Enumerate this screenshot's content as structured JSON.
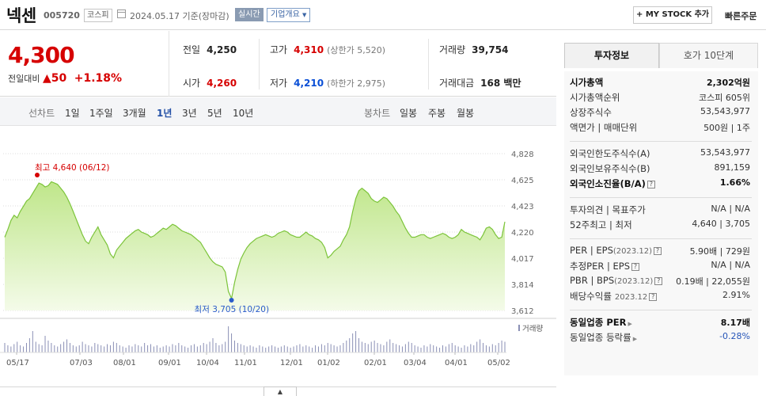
{
  "header": {
    "name": "넥센",
    "code": "005720",
    "market": "코스피",
    "date_text": "2024.05.17 기준(장마감)",
    "realtime": "실시간",
    "company_info": "기업개요",
    "my_stock": "+ MY STOCK 추가",
    "quick_order": "빠른주문"
  },
  "price": {
    "current": "4,300",
    "change_label": "전일대비",
    "change_amount": "▲50",
    "change_rate": "+1.18%"
  },
  "stats": {
    "prev_label": "전일",
    "prev": "4,250",
    "high_label": "고가",
    "high": "4,310",
    "upper_limit": "(상한가 5,520)",
    "volume_label": "거래량",
    "volume": "39,754",
    "open_label": "시가",
    "open": "4,260",
    "low_label": "저가",
    "low": "4,210",
    "lower_limit": "(하한가 2,975)",
    "amount_label": "거래대금",
    "amount": "168 백만"
  },
  "chart_tabs": {
    "line_label": "선차트",
    "line_periods": [
      "1일",
      "1주일",
      "3개월",
      "1년",
      "3년",
      "5년",
      "10년"
    ],
    "active": "1년",
    "candle_label": "봉차트",
    "candle_periods": [
      "일봉",
      "주봉",
      "월봉"
    ]
  },
  "chart_data": {
    "type": "area",
    "title": "",
    "x_tick_labels": [
      "05/17",
      "07/03",
      "08/01",
      "09/01",
      "10/04",
      "11/01",
      "12/01",
      "01/02",
      "02/01",
      "03/04",
      "04/01",
      "05/02"
    ],
    "y_ticks": [
      4828,
      4625,
      4423,
      4220,
      4017,
      3814,
      3612
    ],
    "ylim": [
      3612,
      4828
    ],
    "high_label": "최고 4,640 (06/12)",
    "low_label": "최저 3,705 (10/20)",
    "volume_label": "거래량",
    "grid": "dotted-horizontal",
    "series": [
      {
        "values": [
          4180,
          4240,
          4310,
          4350,
          4330,
          4380,
          4420,
          4460,
          4480,
          4520,
          4560,
          4600,
          4590,
          4570,
          4580,
          4610,
          4600,
          4590,
          4560,
          4530,
          4490,
          4440,
          4380,
          4320,
          4260,
          4200,
          4150,
          4130,
          4180,
          4220,
          4260,
          4200,
          4160,
          4120,
          4050,
          4020,
          4080,
          4110,
          4140,
          4170,
          4190,
          4210,
          4230,
          4240,
          4220,
          4210,
          4200,
          4180,
          4190,
          4210,
          4230,
          4250,
          4240,
          4260,
          4280,
          4270,
          4250,
          4230,
          4220,
          4210,
          4200,
          4180,
          4160,
          4140,
          4100,
          4060,
          4020,
          3990,
          3970,
          3960,
          3950,
          3910,
          3760,
          3705,
          3830,
          3930,
          4010,
          4060,
          4100,
          4130,
          4150,
          4170,
          4180,
          4190,
          4200,
          4190,
          4180,
          4190,
          4210,
          4220,
          4230,
          4220,
          4200,
          4190,
          4180,
          4180,
          4200,
          4220,
          4200,
          4190,
          4170,
          4160,
          4140,
          4100,
          4020,
          4040,
          4070,
          4090,
          4110,
          4160,
          4200,
          4260,
          4380,
          4480,
          4540,
          4560,
          4540,
          4520,
          4480,
          4460,
          4450,
          4470,
          4490,
          4480,
          4450,
          4420,
          4380,
          4350,
          4300,
          4250,
          4210,
          4180,
          4180,
          4190,
          4200,
          4200,
          4180,
          4170,
          4180,
          4190,
          4200,
          4210,
          4200,
          4180,
          4170,
          4180,
          4200,
          4240,
          4220,
          4210,
          4200,
          4190,
          4180,
          4160,
          4200,
          4250,
          4260,
          4240,
          4200,
          4170,
          4180,
          4300
        ]
      }
    ],
    "volume": [
      8,
      6,
      5,
      7,
      9,
      6,
      5,
      8,
      12,
      18,
      9,
      7,
      6,
      14,
      10,
      8,
      6,
      5,
      7,
      9,
      11,
      8,
      6,
      5,
      6,
      9,
      7,
      6,
      5,
      8,
      7,
      6,
      5,
      7,
      6,
      9,
      8,
      6,
      5,
      4,
      6,
      5,
      7,
      6,
      5,
      8,
      6,
      7,
      5,
      6,
      4,
      5,
      6,
      5,
      7,
      6,
      8,
      6,
      5,
      4,
      6,
      7,
      5,
      6,
      8,
      7,
      9,
      12,
      8,
      6,
      7,
      9,
      22,
      16,
      10,
      8,
      7,
      6,
      5,
      6,
      5,
      4,
      6,
      5,
      4,
      5,
      6,
      5,
      4,
      5,
      6,
      5,
      4,
      5,
      6,
      7,
      5,
      6,
      5,
      4,
      6,
      5,
      7,
      6,
      8,
      7,
      6,
      5,
      6,
      8,
      10,
      12,
      16,
      18,
      12,
      9,
      8,
      7,
      9,
      10,
      8,
      7,
      6,
      9,
      11,
      8,
      7,
      6,
      5,
      7,
      9,
      8,
      6,
      5,
      4,
      6,
      5,
      7,
      6,
      5,
      4,
      6,
      5,
      7,
      8,
      6,
      5,
      4,
      6,
      5,
      7,
      6,
      9,
      11,
      8,
      6,
      5,
      7,
      6,
      8,
      10,
      9
    ]
  },
  "right_panel": {
    "tab_active": "투자정보",
    "tab_other": "호가 10단계",
    "market_cap_label": "시가총액",
    "market_cap": "2,302억원",
    "cap_rank_label": "시가총액순위",
    "cap_rank": "코스피 605위",
    "shares_label": "상장주식수",
    "shares": "53,543,977",
    "face_label": "액면가 | 매매단위",
    "face": "500원 | 1주",
    "foreign_limit_label": "외국인한도주식수(A)",
    "foreign_limit": "53,543,977",
    "foreign_hold_label": "외국인보유주식수(B)",
    "foreign_hold": "891,159",
    "foreign_rate_label": "외국인소진율(B/A)",
    "foreign_rate": "1.66%",
    "opinion_label": "투자의견 | 목표주가",
    "opinion": "N/A | N/A",
    "week52_label": "52주최고 | 최저",
    "week52": "4,640 | 3,705",
    "per_label": "PER | EPS",
    "per_sub": "(2023.12)",
    "per": "5.90배 | 729원",
    "est_per_label": "추정PER | EPS",
    "est_per": "N/A | N/A",
    "pbr_label": "PBR | BPS",
    "pbr_sub": "(2023.12)",
    "pbr": "0.19배 | 22,055원",
    "div_label": "배당수익률",
    "div_sub": "2023.12",
    "div": "2.91%",
    "sector_per_label": "동일업종 PER",
    "sector_per": "8.17배",
    "sector_rate_label": "동일업종 등락률",
    "sector_rate": "-0.28%"
  }
}
